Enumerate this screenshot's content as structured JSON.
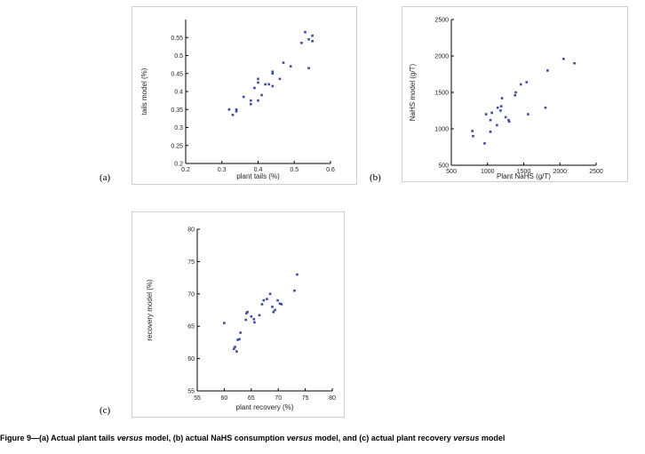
{
  "chart_data": [
    {
      "id": "a",
      "type": "scatter",
      "panel_label": "(a)",
      "xlabel": "plant tails (%)",
      "ylabel": "tails model (%)",
      "xlim": [
        0.2,
        0.6
      ],
      "ylim": [
        0.2,
        0.6
      ],
      "xticks": [
        0.2,
        0.3,
        0.4,
        0.5,
        0.6
      ],
      "xtick_labels": [
        "0.2",
        "0.3",
        "0.4",
        "0.5",
        "0.6"
      ],
      "yticks": [
        0.2,
        0.25,
        0.3,
        0.35,
        0.4,
        0.45,
        0.5,
        0.55
      ],
      "ytick_labels": [
        "0.2",
        "0.25",
        "0.3",
        "0.35",
        "0.4",
        "0.45",
        "0.5",
        "0.55"
      ],
      "points": [
        [
          0.32,
          0.35
        ],
        [
          0.33,
          0.335
        ],
        [
          0.34,
          0.345
        ],
        [
          0.34,
          0.35
        ],
        [
          0.36,
          0.385
        ],
        [
          0.38,
          0.375
        ],
        [
          0.38,
          0.365
        ],
        [
          0.39,
          0.41
        ],
        [
          0.4,
          0.425
        ],
        [
          0.4,
          0.435
        ],
        [
          0.4,
          0.375
        ],
        [
          0.41,
          0.39
        ],
        [
          0.42,
          0.42
        ],
        [
          0.43,
          0.42
        ],
        [
          0.44,
          0.415
        ],
        [
          0.44,
          0.45
        ],
        [
          0.44,
          0.455
        ],
        [
          0.46,
          0.435
        ],
        [
          0.47,
          0.48
        ],
        [
          0.49,
          0.47
        ],
        [
          0.52,
          0.535
        ],
        [
          0.53,
          0.565
        ],
        [
          0.54,
          0.465
        ],
        [
          0.54,
          0.545
        ],
        [
          0.55,
          0.555
        ],
        [
          0.55,
          0.54
        ]
      ]
    },
    {
      "id": "b",
      "type": "scatter",
      "panel_label": "(b)",
      "xlabel": "Plant NaHS (g/T)",
      "ylabel": "NaHS model (g/T)",
      "xlim": [
        500,
        2500
      ],
      "ylim": [
        500,
        2500
      ],
      "xticks": [
        500,
        1000,
        1500,
        2000,
        2500
      ],
      "xtick_labels": [
        "500",
        "1000",
        "1500",
        "2000",
        "2500"
      ],
      "yticks": [
        500,
        1000,
        1500,
        2000,
        2500
      ],
      "ytick_labels": [
        "500",
        "1000",
        "1500",
        "2000",
        "2500"
      ],
      "points": [
        [
          790,
          970
        ],
        [
          800,
          900
        ],
        [
          960,
          800
        ],
        [
          980,
          1200
        ],
        [
          1040,
          960
        ],
        [
          1040,
          1120
        ],
        [
          1060,
          1220
        ],
        [
          1130,
          1050
        ],
        [
          1140,
          1290
        ],
        [
          1180,
          1250
        ],
        [
          1190,
          1310
        ],
        [
          1200,
          1420
        ],
        [
          1250,
          1160
        ],
        [
          1290,
          1120
        ],
        [
          1300,
          1100
        ],
        [
          1380,
          1460
        ],
        [
          1390,
          1500
        ],
        [
          1460,
          1610
        ],
        [
          1540,
          1640
        ],
        [
          1560,
          1200
        ],
        [
          1800,
          1290
        ],
        [
          1830,
          1800
        ],
        [
          2050,
          1960
        ],
        [
          2200,
          1900
        ]
      ]
    },
    {
      "id": "c",
      "type": "scatter",
      "panel_label": "(c)",
      "xlabel": "plant recovery (%)",
      "ylabel": "recovery model (%)",
      "xlim": [
        55,
        80
      ],
      "ylim": [
        55,
        80
      ],
      "xticks": [
        55,
        60,
        65,
        70,
        75,
        80
      ],
      "xtick_labels": [
        "55",
        "60",
        "65",
        "70",
        "75",
        "80"
      ],
      "yticks": [
        55,
        60,
        65,
        70,
        75,
        80
      ],
      "ytick_labels": [
        "55",
        "60",
        "65",
        "70",
        "75",
        "80"
      ],
      "points": [
        [
          60.0,
          65.5
        ],
        [
          61.8,
          61.5
        ],
        [
          62.0,
          61.8
        ],
        [
          62.3,
          61.1
        ],
        [
          62.5,
          62.9
        ],
        [
          62.8,
          63.0
        ],
        [
          63.0,
          64.0
        ],
        [
          64.0,
          66.0
        ],
        [
          64.1,
          67.0
        ],
        [
          64.3,
          67.2
        ],
        [
          65.0,
          66.5
        ],
        [
          65.5,
          66.1
        ],
        [
          65.6,
          65.6
        ],
        [
          66.5,
          66.7
        ],
        [
          67.0,
          68.4
        ],
        [
          67.3,
          69.0
        ],
        [
          67.9,
          69.2
        ],
        [
          68.5,
          70.0
        ],
        [
          68.9,
          68.0
        ],
        [
          69.1,
          67.2
        ],
        [
          69.4,
          67.5
        ],
        [
          69.9,
          69.0
        ],
        [
          70.3,
          68.5
        ],
        [
          70.6,
          68.4
        ],
        [
          73.0,
          70.5
        ],
        [
          73.5,
          73.0
        ]
      ]
    }
  ],
  "caption": {
    "part1": "Figure 9—(a) Actual plant tails ",
    "versus1": "versus",
    "part2": " model, (b) actual NaHS consumption ",
    "versus2": "versus",
    "part3": " model, and (c) actual plant recovery ",
    "versus3": "versus",
    "part4": " model"
  }
}
